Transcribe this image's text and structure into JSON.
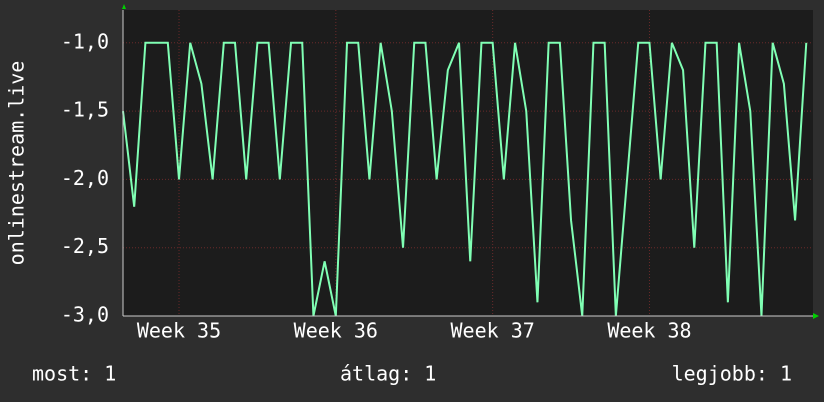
{
  "chart_data": {
    "type": "line",
    "y_label": "onlinestream.live",
    "x": [
      0,
      0.5,
      1,
      1.5,
      2,
      2.5,
      3,
      3.5,
      4,
      4.5,
      5,
      5.5,
      6,
      6.5,
      7,
      7.5,
      8,
      8.5,
      9,
      9.5,
      10,
      10.5,
      11,
      11.5,
      12,
      12.5,
      13,
      13.5,
      14,
      14.5,
      15,
      15.5,
      16,
      16.5,
      17,
      17.5,
      18,
      18.5,
      19,
      19.5,
      20,
      20.5,
      21,
      21.5,
      22,
      22.5,
      23,
      23.5,
      24,
      24.5,
      25,
      25.5,
      26,
      26.5,
      27,
      27.5,
      28,
      28.5,
      29,
      29.5,
      30,
      30.5
    ],
    "series": [
      {
        "color": "#80ffb4",
        "values": [
          -1.5,
          -2.2,
          -1,
          -1,
          -1,
          -2,
          -1,
          -1.3,
          -2,
          -1,
          -1,
          -2,
          -1,
          -1,
          -2,
          -1,
          -1,
          -3,
          -2.6,
          -3,
          -1,
          -1,
          -2,
          -1,
          -1.5,
          -2.5,
          -1,
          -1,
          -2,
          -1.2,
          -1,
          -2.6,
          -1,
          -1,
          -2,
          -1,
          -1.5,
          -2.9,
          -1,
          -1,
          -2.3,
          -3,
          -1,
          -1,
          -3,
          -2,
          -1,
          -1,
          -2,
          -1,
          -1.2,
          -2.5,
          -1,
          -1,
          -2.9,
          -1,
          -1.5,
          -3,
          -1,
          -1.3,
          -2.3,
          -1
        ]
      }
    ],
    "xlim": [
      0,
      30.8
    ],
    "xticks": [
      {
        "value": 2.5,
        "label": "Week 35"
      },
      {
        "value": 9.5,
        "label": "Week 36"
      },
      {
        "value": 16.5,
        "label": "Week 37"
      },
      {
        "value": 23.5,
        "label": "Week 38"
      }
    ],
    "ylim": [
      -3,
      -0.76
    ],
    "yticks": [
      {
        "value": -3,
        "label": "-3,0"
      },
      {
        "value": -2.5,
        "label": "-2,5"
      },
      {
        "value": -2,
        "label": "-2,0"
      },
      {
        "value": -1.5,
        "label": "-1,5"
      },
      {
        "value": -1,
        "label": "-1,0"
      }
    ],
    "grid": true,
    "footer": {
      "current": "most: 1",
      "average": "átlag: 1",
      "best": "legjobb: 1"
    }
  }
}
